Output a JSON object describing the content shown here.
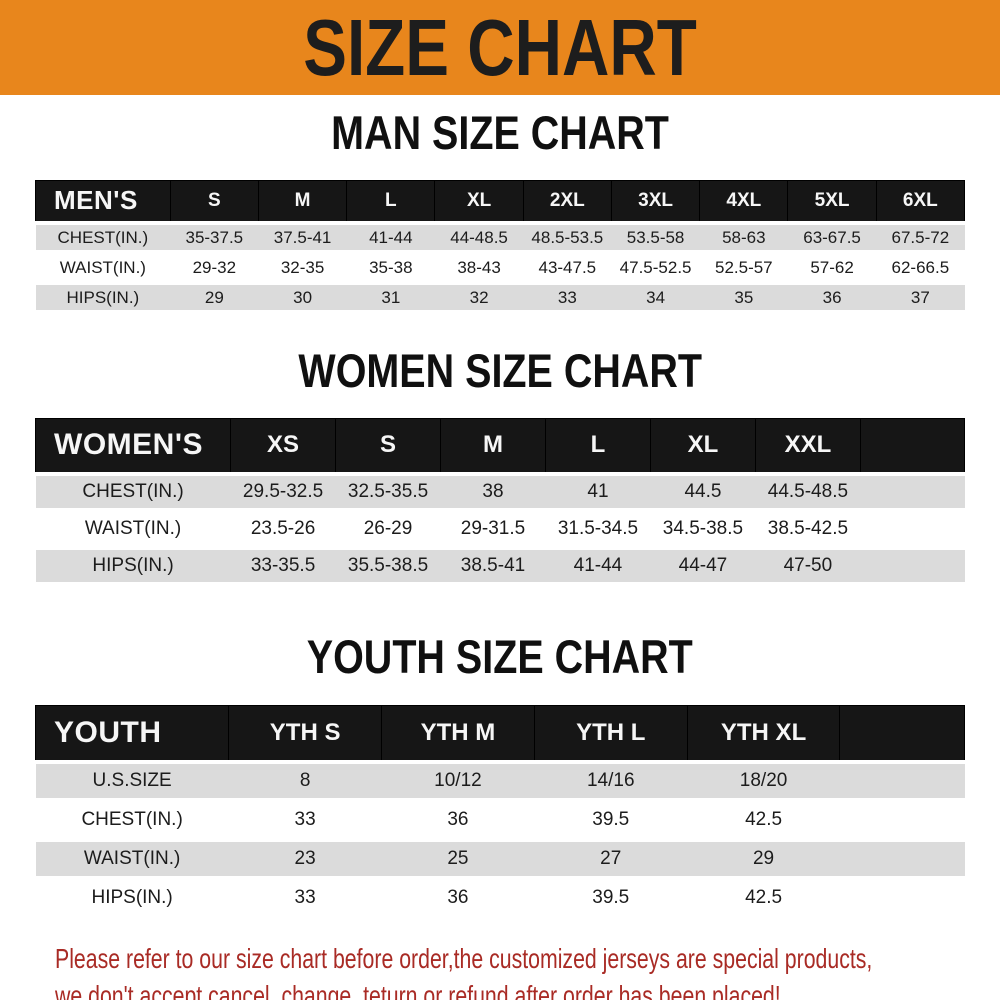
{
  "banner": {
    "title": "SIZE CHART",
    "bg_color": "#E8861C",
    "text_color": "#1d1d1d"
  },
  "sections": [
    {
      "heading": "MAN SIZE CHART",
      "table": {
        "header_label": "MEN'S",
        "columns": [
          "S",
          "M",
          "L",
          "XL",
          "2XL",
          "3XL",
          "4XL",
          "5XL",
          "6XL"
        ],
        "rows": [
          {
            "label": "CHEST(IN.)",
            "values": [
              "35-37.5",
              "37.5-41",
              "41-44",
              "44-48.5",
              "48.5-53.5",
              "53.5-58",
              "58-63",
              "63-67.5",
              "67.5-72"
            ]
          },
          {
            "label": "WAIST(IN.)",
            "values": [
              "29-32",
              "32-35",
              "35-38",
              "38-43",
              "43-47.5",
              "47.5-52.5",
              "52.5-57",
              "57-62",
              "62-66.5"
            ]
          },
          {
            "label": "HIPS(IN.)",
            "values": [
              "29",
              "30",
              "31",
              "32",
              "33",
              "34",
              "35",
              "36",
              "37"
            ]
          }
        ]
      }
    },
    {
      "heading": "WOMEN SIZE CHART",
      "table": {
        "header_label": "WOMEN'S",
        "columns": [
          "XS",
          "S",
          "M",
          "L",
          "XL",
          "XXL"
        ],
        "rows": [
          {
            "label": "CHEST(IN.)",
            "values": [
              "29.5-32.5",
              "32.5-35.5",
              "38",
              "41",
              "44.5",
              "44.5-48.5"
            ]
          },
          {
            "label": "WAIST(IN.)",
            "values": [
              "23.5-26",
              "26-29",
              "29-31.5",
              "31.5-34.5",
              "34.5-38.5",
              "38.5-42.5"
            ]
          },
          {
            "label": "HIPS(IN.)",
            "values": [
              "33-35.5",
              "35.5-38.5",
              "38.5-41",
              "41-44",
              "44-47",
              "47-50"
            ]
          }
        ]
      }
    },
    {
      "heading": "YOUTH SIZE CHART",
      "table": {
        "header_label": "YOUTH",
        "columns": [
          "YTH S",
          "YTH M",
          "YTH L",
          "YTH XL"
        ],
        "rows": [
          {
            "label": "U.S.SIZE",
            "values": [
              "8",
              "10/12",
              "14/16",
              "18/20"
            ]
          },
          {
            "label": "CHEST(IN.)",
            "values": [
              "33",
              "36",
              "39.5",
              "42.5"
            ]
          },
          {
            "label": "WAIST(IN.)",
            "values": [
              "23",
              "25",
              "27",
              "29"
            ]
          },
          {
            "label": "HIPS(IN.)",
            "values": [
              "33",
              "36",
              "39.5",
              "42.5"
            ]
          }
        ]
      }
    }
  ],
  "footer": {
    "line1": "Please refer to our size chart before order,the customized jerseys are special products,",
    "line2": "we don't accept cancel, change, teturn or refund after order has been placed!",
    "text_color": "#A92B25"
  },
  "colors": {
    "banner_orange": "#E8861C",
    "header_black": "#161616",
    "stripe_gray": "#dbdbdb",
    "notice_red": "#A92B25"
  }
}
